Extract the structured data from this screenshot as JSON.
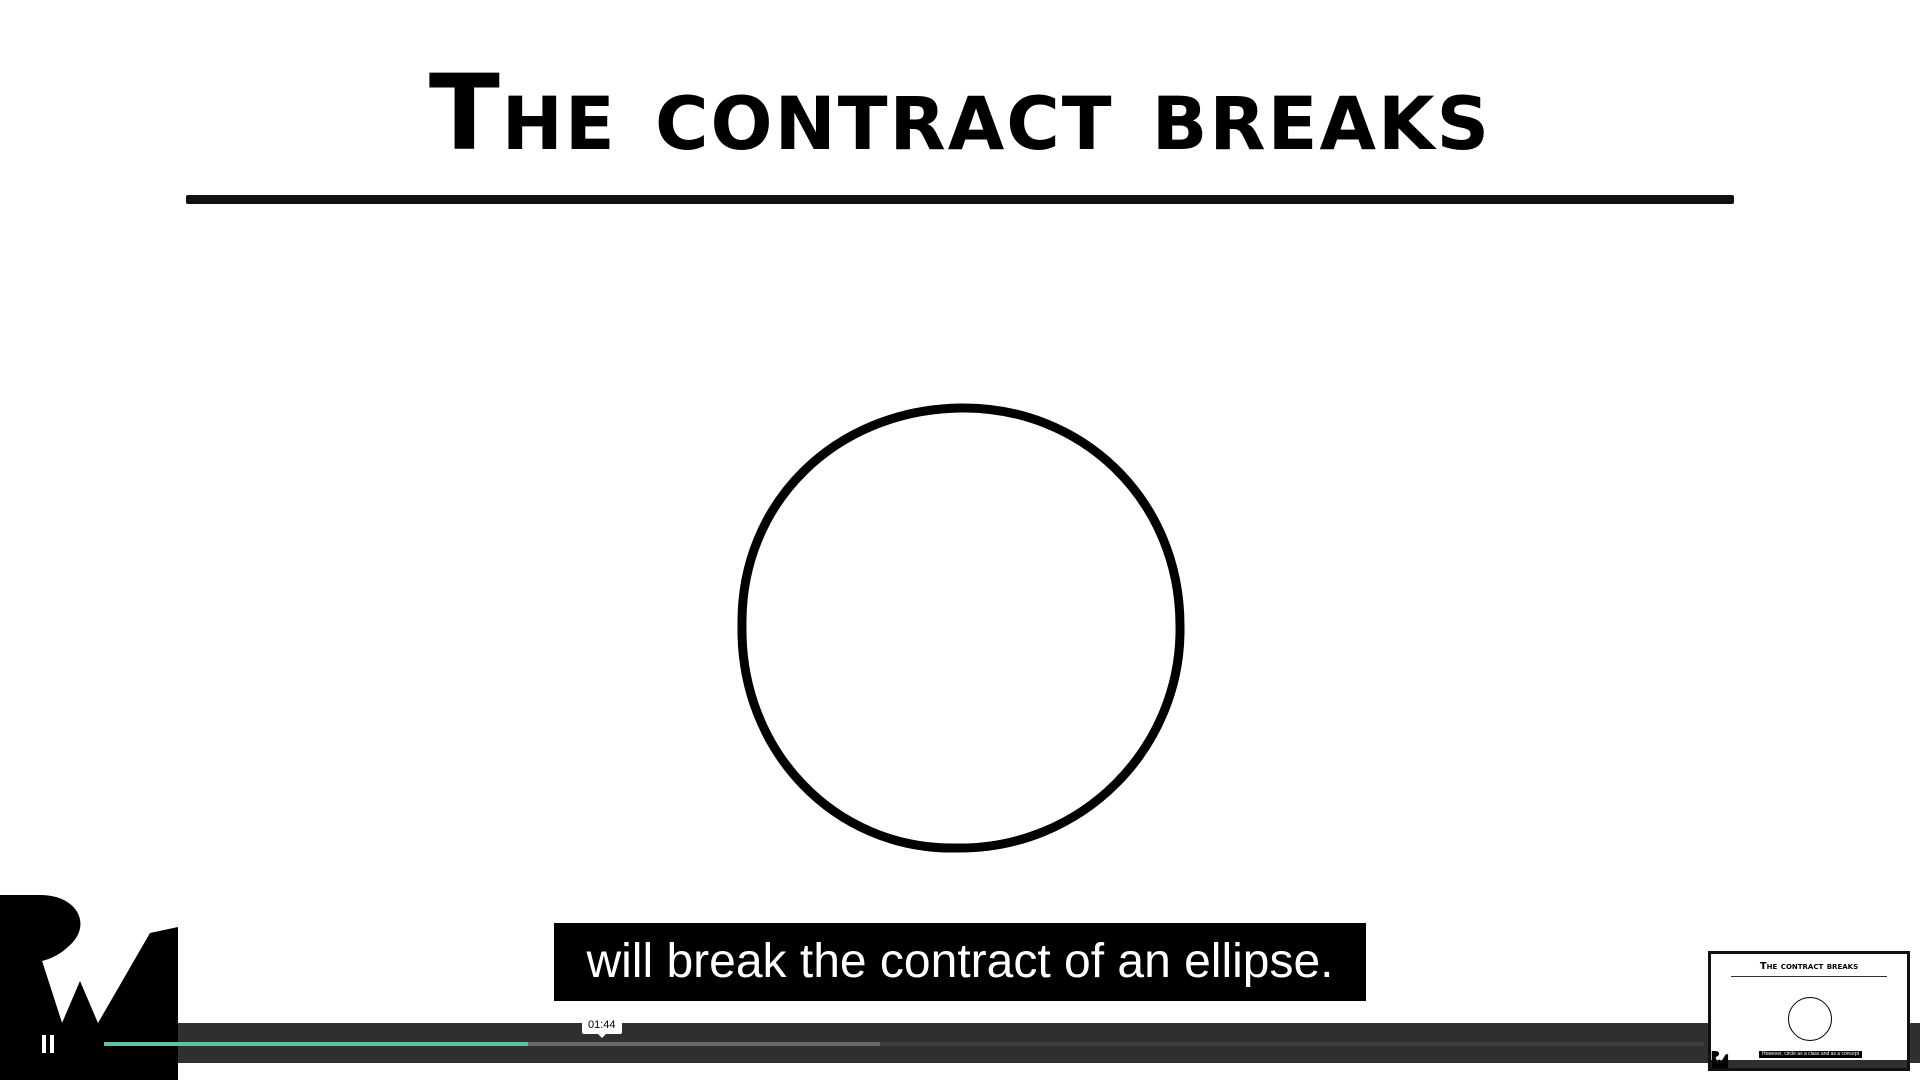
{
  "slide": {
    "title": "The contract breaks",
    "caption": "will break the contract of an ellipse."
  },
  "player": {
    "pause_label": "pause",
    "hover_time": "01:44",
    "progress_played_fraction": 0.265,
    "progress_buffered_fraction": 0.485,
    "accent_color": "#5fc3a3",
    "bar_color": "#2f2f2f"
  },
  "preview": {
    "title": "The contract breaks",
    "caption": "However, circle as a class and as a concept"
  },
  "logo": {
    "icon": "rw-logo-icon"
  }
}
